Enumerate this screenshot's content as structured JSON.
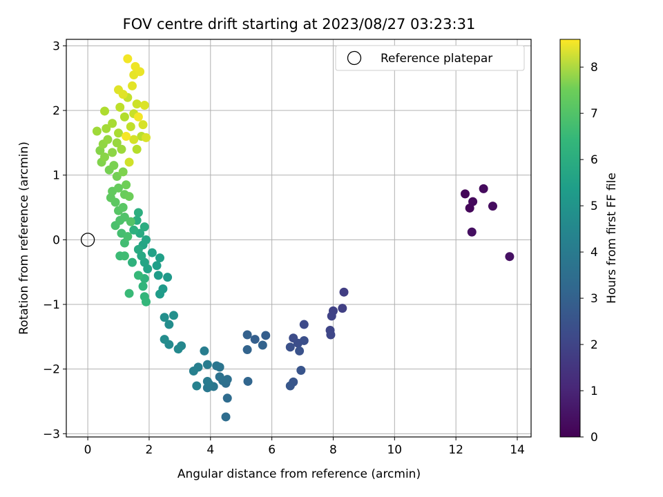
{
  "chart_data": {
    "type": "scatter",
    "title": "FOV centre drift starting at 2023/08/27 03:23:31",
    "xlabel": "Angular distance from reference (arcmin)",
    "ylabel": "Rotation from reference (arcmin)",
    "xlim": [
      -0.7,
      14.45
    ],
    "ylim": [
      -3.05,
      3.1
    ],
    "xticks": [
      0,
      2,
      4,
      6,
      8,
      10,
      12,
      14
    ],
    "yticks": [
      -3,
      -2,
      -1,
      0,
      1,
      2,
      3
    ],
    "grid": true,
    "legend": {
      "placement": "top-right",
      "entries": [
        "Reference platepar"
      ]
    },
    "reference_point": {
      "x": 0,
      "y": 0,
      "label": "Reference platepar"
    },
    "colorbar": {
      "label": "Hours from first FF file",
      "range": [
        0,
        8.6
      ],
      "ticks": [
        0,
        1,
        2,
        3,
        4,
        5,
        6,
        7,
        8
      ],
      "colormap": "viridis"
    },
    "points": [
      {
        "x": 12.3,
        "y": 0.71,
        "c": 0.1
      },
      {
        "x": 12.45,
        "y": 0.49,
        "c": 0.15
      },
      {
        "x": 12.55,
        "y": 0.59,
        "c": 0.2
      },
      {
        "x": 12.9,
        "y": 0.79,
        "c": 0.25
      },
      {
        "x": 13.2,
        "y": 0.52,
        "c": 0.3
      },
      {
        "x": 12.52,
        "y": 0.12,
        "c": 0.35
      },
      {
        "x": 13.75,
        "y": -0.26,
        "c": 0.4
      },
      {
        "x": 8.35,
        "y": -0.81,
        "c": 1.6
      },
      {
        "x": 8.3,
        "y": -1.06,
        "c": 1.65
      },
      {
        "x": 8.0,
        "y": -1.1,
        "c": 1.7
      },
      {
        "x": 7.95,
        "y": -1.18,
        "c": 1.75
      },
      {
        "x": 7.9,
        "y": -1.4,
        "c": 1.8
      },
      {
        "x": 7.92,
        "y": -1.47,
        "c": 1.85
      },
      {
        "x": 7.05,
        "y": -1.31,
        "c": 1.95
      },
      {
        "x": 6.7,
        "y": -1.52,
        "c": 2.0
      },
      {
        "x": 6.85,
        "y": -1.6,
        "c": 2.05
      },
      {
        "x": 7.05,
        "y": -1.56,
        "c": 2.1
      },
      {
        "x": 6.6,
        "y": -1.66,
        "c": 2.15
      },
      {
        "x": 6.9,
        "y": -1.72,
        "c": 2.2
      },
      {
        "x": 6.95,
        "y": -2.02,
        "c": 2.25
      },
      {
        "x": 6.7,
        "y": -2.2,
        "c": 2.3
      },
      {
        "x": 6.6,
        "y": -2.26,
        "c": 2.35
      },
      {
        "x": 5.8,
        "y": -1.48,
        "c": 2.55
      },
      {
        "x": 5.45,
        "y": -1.54,
        "c": 2.6
      },
      {
        "x": 5.2,
        "y": -1.47,
        "c": 2.65
      },
      {
        "x": 5.7,
        "y": -1.63,
        "c": 2.7
      },
      {
        "x": 5.2,
        "y": -1.7,
        "c": 2.75
      },
      {
        "x": 5.22,
        "y": -2.19,
        "c": 2.8
      },
      {
        "x": 4.55,
        "y": -2.45,
        "c": 3.0
      },
      {
        "x": 4.5,
        "y": -2.74,
        "c": 3.05
      },
      {
        "x": 4.5,
        "y": -2.22,
        "c": 3.1
      },
      {
        "x": 4.55,
        "y": -2.16,
        "c": 3.15
      },
      {
        "x": 4.4,
        "y": -2.18,
        "c": 3.2
      },
      {
        "x": 4.3,
        "y": -2.12,
        "c": 3.25
      },
      {
        "x": 4.3,
        "y": -1.97,
        "c": 3.3
      },
      {
        "x": 4.2,
        "y": -1.95,
        "c": 3.35
      },
      {
        "x": 4.1,
        "y": -2.27,
        "c": 3.4
      },
      {
        "x": 3.9,
        "y": -2.29,
        "c": 3.45
      },
      {
        "x": 3.95,
        "y": -2.23,
        "c": 3.5
      },
      {
        "x": 3.9,
        "y": -2.19,
        "c": 3.55
      },
      {
        "x": 3.9,
        "y": -1.93,
        "c": 3.6
      },
      {
        "x": 3.8,
        "y": -1.72,
        "c": 3.65
      },
      {
        "x": 3.6,
        "y": -1.97,
        "c": 3.7
      },
      {
        "x": 3.45,
        "y": -2.03,
        "c": 3.75
      },
      {
        "x": 3.55,
        "y": -2.26,
        "c": 3.8
      },
      {
        "x": 3.05,
        "y": -1.64,
        "c": 4.0
      },
      {
        "x": 2.95,
        "y": -1.69,
        "c": 4.05
      },
      {
        "x": 2.65,
        "y": -1.62,
        "c": 4.1
      },
      {
        "x": 2.5,
        "y": -1.54,
        "c": 4.15
      },
      {
        "x": 2.65,
        "y": -1.31,
        "c": 4.2
      },
      {
        "x": 2.5,
        "y": -1.2,
        "c": 4.25
      },
      {
        "x": 2.8,
        "y": -1.17,
        "c": 4.3
      },
      {
        "x": 2.6,
        "y": -0.58,
        "c": 4.6
      },
      {
        "x": 2.45,
        "y": -0.76,
        "c": 4.65
      },
      {
        "x": 2.35,
        "y": -0.84,
        "c": 4.7
      },
      {
        "x": 2.3,
        "y": -0.55,
        "c": 4.75
      },
      {
        "x": 2.25,
        "y": -0.4,
        "c": 4.8
      },
      {
        "x": 2.35,
        "y": -0.28,
        "c": 4.85
      },
      {
        "x": 2.1,
        "y": -0.2,
        "c": 4.9
      },
      {
        "x": 1.95,
        "y": -0.45,
        "c": 4.95
      },
      {
        "x": 1.85,
        "y": -0.35,
        "c": 5.0
      },
      {
        "x": 1.8,
        "y": -0.08,
        "c": 5.05
      },
      {
        "x": 1.9,
        "y": 0.0,
        "c": 5.1
      },
      {
        "x": 1.75,
        "y": -0.25,
        "c": 5.15
      },
      {
        "x": 1.65,
        "y": -0.15,
        "c": 5.2
      },
      {
        "x": 1.7,
        "y": 0.1,
        "c": 5.25
      },
      {
        "x": 1.85,
        "y": 0.2,
        "c": 5.3
      },
      {
        "x": 1.6,
        "y": 0.3,
        "c": 5.35
      },
      {
        "x": 1.65,
        "y": 0.42,
        "c": 5.4
      },
      {
        "x": 1.5,
        "y": 0.15,
        "c": 5.45
      },
      {
        "x": 1.45,
        "y": -0.35,
        "c": 5.5
      },
      {
        "x": 1.85,
        "y": -0.6,
        "c": 5.55
      },
      {
        "x": 1.8,
        "y": -0.72,
        "c": 5.6
      },
      {
        "x": 1.85,
        "y": -0.88,
        "c": 5.65
      },
      {
        "x": 1.9,
        "y": -0.96,
        "c": 5.7
      },
      {
        "x": 1.65,
        "y": -0.55,
        "c": 5.75
      },
      {
        "x": 1.35,
        "y": -0.83,
        "c": 5.8
      },
      {
        "x": 1.05,
        "y": -0.25,
        "c": 5.85
      },
      {
        "x": 1.2,
        "y": -0.25,
        "c": 5.9
      },
      {
        "x": 1.2,
        "y": -0.05,
        "c": 5.95
      },
      {
        "x": 1.1,
        "y": 0.1,
        "c": 6.0
      },
      {
        "x": 1.3,
        "y": 0.05,
        "c": 6.05
      },
      {
        "x": 0.9,
        "y": 0.22,
        "c": 6.1
      },
      {
        "x": 1.05,
        "y": 0.3,
        "c": 6.15
      },
      {
        "x": 1.2,
        "y": 0.35,
        "c": 6.2
      },
      {
        "x": 1.4,
        "y": 0.28,
        "c": 6.25
      },
      {
        "x": 1.0,
        "y": 0.45,
        "c": 6.3
      },
      {
        "x": 1.15,
        "y": 0.5,
        "c": 6.35
      },
      {
        "x": 0.9,
        "y": 0.58,
        "c": 6.4
      },
      {
        "x": 0.75,
        "y": 0.65,
        "c": 6.45
      },
      {
        "x": 0.8,
        "y": 0.75,
        "c": 6.5
      },
      {
        "x": 1.0,
        "y": 0.8,
        "c": 6.55
      },
      {
        "x": 1.2,
        "y": 0.7,
        "c": 6.6
      },
      {
        "x": 1.35,
        "y": 0.67,
        "c": 6.65
      },
      {
        "x": 1.25,
        "y": 0.85,
        "c": 6.7
      },
      {
        "x": 0.95,
        "y": 0.98,
        "c": 6.75
      },
      {
        "x": 0.7,
        "y": 1.08,
        "c": 6.8
      },
      {
        "x": 0.85,
        "y": 1.15,
        "c": 6.85
      },
      {
        "x": 1.15,
        "y": 1.05,
        "c": 6.9
      },
      {
        "x": 0.45,
        "y": 1.2,
        "c": 6.95
      },
      {
        "x": 0.4,
        "y": 1.38,
        "c": 7.0
      },
      {
        "x": 0.55,
        "y": 1.28,
        "c": 7.05
      },
      {
        "x": 0.8,
        "y": 1.35,
        "c": 7.1
      },
      {
        "x": 0.5,
        "y": 1.48,
        "c": 7.15
      },
      {
        "x": 0.65,
        "y": 1.55,
        "c": 7.2
      },
      {
        "x": 0.95,
        "y": 1.5,
        "c": 7.25
      },
      {
        "x": 1.1,
        "y": 1.4,
        "c": 7.3
      },
      {
        "x": 0.3,
        "y": 1.68,
        "c": 7.35
      },
      {
        "x": 0.6,
        "y": 1.72,
        "c": 7.4
      },
      {
        "x": 0.8,
        "y": 1.8,
        "c": 7.45
      },
      {
        "x": 1.0,
        "y": 1.65,
        "c": 7.5
      },
      {
        "x": 0.55,
        "y": 1.99,
        "c": 7.55
      },
      {
        "x": 1.2,
        "y": 1.9,
        "c": 7.6
      },
      {
        "x": 1.6,
        "y": 1.4,
        "c": 7.65
      },
      {
        "x": 1.75,
        "y": 1.6,
        "c": 7.7
      },
      {
        "x": 1.05,
        "y": 2.05,
        "c": 7.75
      },
      {
        "x": 1.4,
        "y": 1.75,
        "c": 7.8
      },
      {
        "x": 1.3,
        "y": 2.2,
        "c": 7.85
      },
      {
        "x": 1.5,
        "y": 1.95,
        "c": 7.9
      },
      {
        "x": 1.6,
        "y": 2.1,
        "c": 7.95
      },
      {
        "x": 1.35,
        "y": 1.2,
        "c": 8.0
      },
      {
        "x": 1.5,
        "y": 1.55,
        "c": 8.05
      },
      {
        "x": 1.8,
        "y": 1.78,
        "c": 8.1
      },
      {
        "x": 1.9,
        "y": 1.58,
        "c": 8.12
      },
      {
        "x": 1.85,
        "y": 2.08,
        "c": 8.15
      },
      {
        "x": 1.0,
        "y": 2.32,
        "c": 8.2
      },
      {
        "x": 1.15,
        "y": 2.25,
        "c": 8.22
      },
      {
        "x": 1.45,
        "y": 2.38,
        "c": 8.25
      },
      {
        "x": 1.5,
        "y": 2.55,
        "c": 8.3
      },
      {
        "x": 1.7,
        "y": 2.6,
        "c": 8.35
      },
      {
        "x": 1.55,
        "y": 2.68,
        "c": 8.4
      },
      {
        "x": 1.3,
        "y": 2.8,
        "c": 8.45
      },
      {
        "x": 1.65,
        "y": 1.9,
        "c": 8.48
      },
      {
        "x": 1.25,
        "y": 1.6,
        "c": 8.5
      }
    ]
  }
}
